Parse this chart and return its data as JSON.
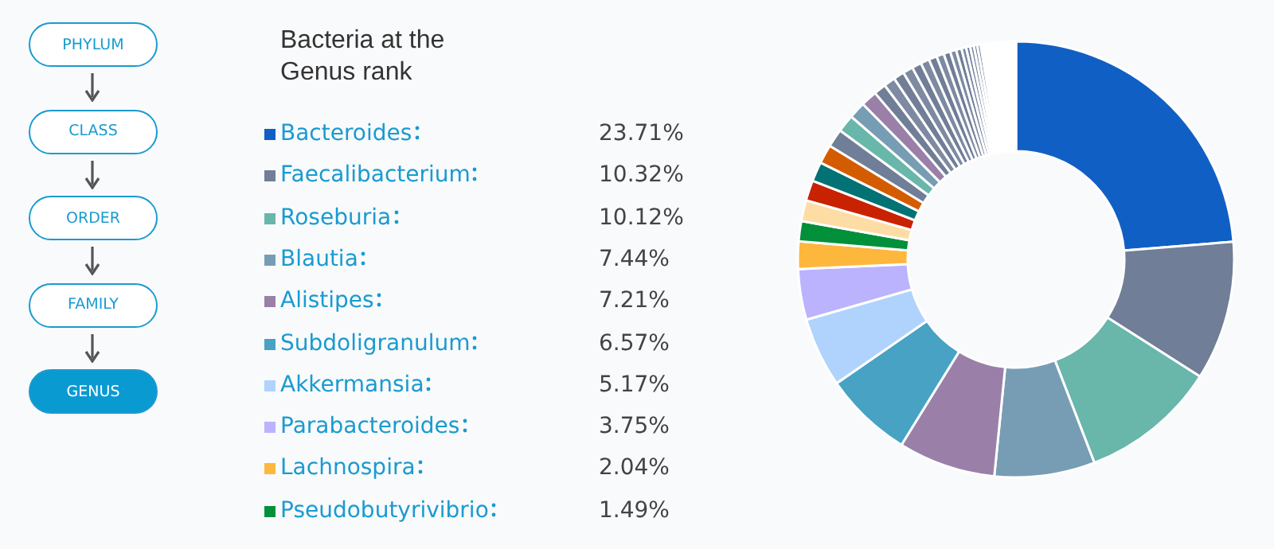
{
  "chart_data": {
    "type": "donut",
    "title": "Bacteria at the Genus rank",
    "categories": [
      "Bacteroides",
      "Faecalibacterium",
      "Roseburia",
      "Blautia",
      "Alistipes",
      "Subdoligranulum",
      "Akkermansia",
      "Parabacteroides",
      "Lachnospira",
      "Pseudobutyrivibrio",
      null,
      null,
      null,
      null,
      null,
      null,
      null,
      null,
      null,
      null,
      null,
      null,
      null,
      null,
      null,
      null,
      null,
      null,
      null,
      null,
      null,
      null,
      null,
      null,
      null
    ],
    "values": [
      23.71,
      10.32,
      10.12,
      7.44,
      7.21,
      6.57,
      5.17,
      3.75,
      2.04,
      1.49,
      1.55,
      1.5,
      1.45,
      1.4,
      1.35,
      1.3,
      1.25,
      1.2,
      0.9,
      0.85,
      0.8,
      0.75,
      0.7,
      0.65,
      0.6,
      0.55,
      0.5,
      0.45,
      0.4,
      0.35,
      0.3,
      0.28,
      0.25,
      0.25,
      2.6
    ],
    "value_labels": [
      "23.71%",
      "10.32%",
      "10.12%",
      "7.44%",
      "7.21%",
      "6.57%",
      "5.17%",
      "3.75%",
      "2.04%",
      "1.49%",
      null,
      null,
      null,
      null,
      null,
      null,
      null,
      null,
      null,
      null,
      null,
      null,
      null,
      null,
      null,
      null,
      null,
      null,
      null,
      null,
      null,
      null,
      null,
      null,
      null
    ],
    "colors": [
      "#105fc4",
      "#707e97",
      "#69b6ab",
      "#779db4",
      "#9a80a8",
      "#47a2c4",
      "#b0d3fd",
      "#bbb3fd",
      "#feb73d",
      "#02903a",
      "#fedda5",
      "#c82200",
      "#037275",
      "#d45c00",
      "#707e97",
      "#69b6ab",
      "#779db4",
      "#9a80a8",
      "#707e97",
      "#7d8aa1",
      "#707e97",
      "#7d8aa1",
      "#707e97",
      "#7d8aa1",
      "#707e97",
      "#7d8aa1",
      "#707e97",
      "#7d8aa1",
      "#707e97",
      "#7d8aa1",
      "#707e97",
      "#7d8aa1",
      "#707e97",
      "#7d8aa1",
      "#ffffff"
    ],
    "legend": "left",
    "annotations": [
      "PHYLUM",
      "CLASS",
      "ORDER",
      "FAMILY",
      "GENUS"
    ]
  }
}
